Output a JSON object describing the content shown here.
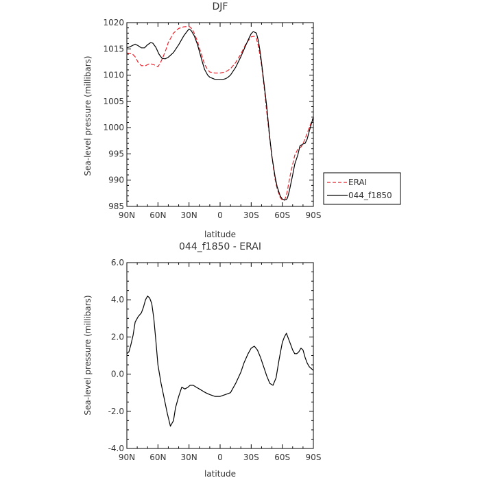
{
  "chart_data": [
    {
      "type": "line",
      "title": "DJF",
      "xlabel": "latitude",
      "ylabel": "Sea-level pressure (millibars)",
      "xlim": [
        90,
        -90
      ],
      "ylim": [
        985,
        1020
      ],
      "x_ticks": [
        90,
        60,
        30,
        0,
        -30,
        -60,
        -90
      ],
      "x_tick_labels": [
        "90N",
        "60N",
        "30N",
        "0",
        "30S",
        "60S",
        "90S"
      ],
      "y_ticks": [
        985,
        990,
        995,
        1000,
        1005,
        1010,
        1015,
        1020
      ],
      "y_tick_labels": [
        "985",
        "990",
        "995",
        "1000",
        "1005",
        "1010",
        "1015",
        "1020"
      ],
      "grid": false,
      "legend_position": "right-bottom, outside plot",
      "series": [
        {
          "name": "ERAI",
          "color": "#e8212a",
          "dash": "dashed",
          "x": [
            90,
            85,
            82,
            79,
            76,
            72,
            68,
            64,
            60,
            58,
            55,
            52,
            50,
            45,
            40,
            35,
            30,
            27,
            25,
            22,
            20,
            17,
            15,
            12,
            10,
            5,
            0,
            -5,
            -10,
            -15,
            -20,
            -25,
            -30,
            -33,
            -35,
            -37,
            -40,
            -43,
            -45,
            -48,
            -50,
            -53,
            -55,
            -58,
            -60,
            -62,
            -63,
            -64,
            -65,
            -66,
            -68,
            -70,
            -72,
            -75,
            -78,
            -80,
            -82,
            -84,
            -86,
            -88,
            -90
          ],
          "y": [
            1014.2,
            1014.1,
            1013.5,
            1012.4,
            1011.8,
            1011.8,
            1012.2,
            1012.0,
            1011.6,
            1012.2,
            1013.5,
            1015.0,
            1016.2,
            1018.0,
            1018.9,
            1019.2,
            1019.3,
            1018.8,
            1018.0,
            1016.5,
            1015.2,
            1013.3,
            1012.1,
            1011.0,
            1010.6,
            1010.4,
            1010.4,
            1010.6,
            1011.2,
            1012.4,
            1014.0,
            1016.0,
            1017.3,
            1017.4,
            1017.0,
            1015.5,
            1012.0,
            1006.8,
            1003.0,
            997.8,
            994.4,
            990.2,
            988.4,
            986.7,
            986.2,
            986.2,
            986.6,
            987.2,
            988.0,
            989.2,
            991.3,
            993.0,
            994.7,
            995.9,
            996.3,
            996.9,
            997.9,
            998.9,
            1000.0,
            1001.0,
            1002.0
          ]
        },
        {
          "name": "044_f1850",
          "color": "#000000",
          "dash": "solid",
          "x": [
            90,
            87,
            85,
            82,
            79,
            76,
            73,
            70,
            67,
            65,
            62,
            59,
            56,
            53,
            50,
            45,
            40,
            35,
            32,
            30,
            28,
            25,
            22,
            20,
            17,
            15,
            12,
            10,
            5,
            0,
            -3,
            -5,
            -7,
            -10,
            -15,
            -20,
            -25,
            -28,
            -30,
            -32,
            -35,
            -37,
            -39,
            -42,
            -45,
            -48,
            -50,
            -53,
            -55,
            -58,
            -60,
            -62,
            -64,
            -65,
            -66,
            -67,
            -68,
            -70,
            -72,
            -75,
            -77,
            -80,
            -82,
            -84,
            -86,
            -88,
            -90
          ],
          "y": [
            1015.2,
            1015.4,
            1015.6,
            1015.9,
            1015.6,
            1015.2,
            1015.2,
            1015.8,
            1016.2,
            1016.1,
            1015.3,
            1014.0,
            1013.2,
            1013.1,
            1013.4,
            1014.3,
            1015.8,
            1017.5,
            1018.3,
            1018.8,
            1018.5,
            1017.5,
            1015.9,
            1014.5,
            1012.4,
            1011.1,
            1010.0,
            1009.6,
            1009.2,
            1009.2,
            1009.2,
            1009.3,
            1009.5,
            1010.0,
            1011.5,
            1013.5,
            1015.8,
            1017.1,
            1017.9,
            1018.3,
            1018.0,
            1016.5,
            1014.0,
            1009.0,
            1004.0,
            998.0,
            994.5,
            990.7,
            988.8,
            987.0,
            986.4,
            986.2,
            986.3,
            986.6,
            987.3,
            988.1,
            989.1,
            991.0,
            993.0,
            994.8,
            996.5,
            996.9,
            997.0,
            997.8,
            999.3,
            1000.7,
            1002.0
          ]
        }
      ]
    },
    {
      "type": "line",
      "title": "044_f1850 - ERAI",
      "xlabel": "latitude",
      "ylabel": "Sea-level pressure (millibars)",
      "xlim": [
        90,
        -90
      ],
      "ylim": [
        -4,
        6
      ],
      "x_ticks": [
        90,
        60,
        30,
        0,
        -30,
        -60,
        -90
      ],
      "x_tick_labels": [
        "90N",
        "60N",
        "30N",
        "0",
        "30S",
        "60S",
        "90S"
      ],
      "y_ticks": [
        -4,
        -2,
        0,
        2,
        4,
        6
      ],
      "y_tick_labels": [
        "-4.0",
        "-2.0",
        "0.0",
        "2.0",
        "4.0",
        "6.0"
      ],
      "grid": false,
      "series": [
        {
          "color": "#000000",
          "dash": "solid",
          "x": [
            90,
            88,
            86,
            84,
            82,
            79,
            76,
            74,
            72,
            70,
            68,
            66,
            64,
            62,
            60,
            57,
            54,
            51,
            48,
            45,
            43,
            40,
            37,
            34,
            31,
            29,
            26,
            23,
            20,
            17,
            14,
            10,
            5,
            0,
            -5,
            -10,
            -15,
            -20,
            -23,
            -27,
            -30,
            -33,
            -36,
            -39,
            -42,
            -45,
            -48,
            -51,
            -54,
            -57,
            -60,
            -62,
            -64,
            -66,
            -68,
            -70,
            -72,
            -74,
            -76,
            -78,
            -80,
            -82,
            -84,
            -86,
            -88,
            -90
          ],
          "y": [
            1.1,
            1.2,
            1.6,
            2.1,
            2.8,
            3.1,
            3.3,
            3.6,
            4.0,
            4.2,
            4.1,
            3.8,
            3.0,
            1.8,
            0.5,
            -0.5,
            -1.3,
            -2.1,
            -2.8,
            -2.5,
            -1.8,
            -1.2,
            -0.7,
            -0.8,
            -0.7,
            -0.6,
            -0.6,
            -0.7,
            -0.8,
            -0.9,
            -1.0,
            -1.1,
            -1.2,
            -1.2,
            -1.1,
            -1.0,
            -0.5,
            0.1,
            0.6,
            1.1,
            1.4,
            1.5,
            1.3,
            0.9,
            0.4,
            -0.1,
            -0.5,
            -0.6,
            -0.2,
            0.8,
            1.7,
            2.0,
            2.2,
            1.9,
            1.6,
            1.3,
            1.1,
            1.1,
            1.2,
            1.4,
            1.3,
            0.9,
            0.6,
            0.4,
            0.3,
            0.2
          ]
        }
      ]
    }
  ]
}
